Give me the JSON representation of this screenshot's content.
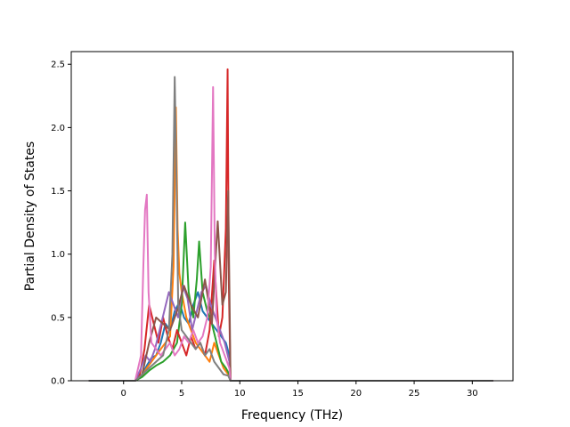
{
  "chart_data": {
    "type": "line",
    "title": "",
    "xlabel": "Frequency (THz)",
    "ylabel": "Partial Density of States",
    "xlim": [
      -4.5,
      33.5
    ],
    "ylim": [
      0,
      2.6
    ],
    "xticks": [
      0,
      5,
      10,
      15,
      20,
      25,
      30
    ],
    "yticks": [
      0.0,
      0.5,
      1.0,
      1.5,
      2.0,
      2.5
    ],
    "xtick_labels": [
      "0",
      "5",
      "10",
      "15",
      "20",
      "25",
      "30"
    ],
    "ytick_labels": [
      "0.0",
      "0.5",
      "1.0",
      "1.5",
      "2.0",
      "2.5"
    ],
    "grid": false,
    "legend": "none",
    "series": [
      {
        "color": "#1f77b4",
        "x": [
          -3,
          1,
          1.6,
          2.0,
          2.4,
          2.8,
          3.2,
          3.6,
          4.0,
          4.4,
          4.8,
          5.2,
          5.6,
          6.0,
          6.4,
          6.8,
          7.2,
          7.6,
          8.0,
          8.4,
          8.8,
          9.1,
          9.2,
          31.8
        ],
        "y": [
          0,
          0,
          0.05,
          0.12,
          0.18,
          0.2,
          0.3,
          0.45,
          0.4,
          0.55,
          0.62,
          0.5,
          0.45,
          0.6,
          0.7,
          0.55,
          0.5,
          0.45,
          0.4,
          0.35,
          0.3,
          0.2,
          0,
          0
        ]
      },
      {
        "color": "#ff7f0e",
        "x": [
          -3,
          1,
          1.6,
          2.0,
          2.4,
          2.8,
          3.2,
          3.6,
          4.0,
          4.3,
          4.5,
          4.65,
          4.8,
          5.0,
          5.4,
          5.8,
          6.2,
          6.6,
          7.0,
          7.4,
          7.8,
          8.2,
          8.6,
          9.0,
          9.2,
          31.8
        ],
        "y": [
          0,
          0,
          0.04,
          0.1,
          0.15,
          0.2,
          0.25,
          0.3,
          0.35,
          0.9,
          2.16,
          1.2,
          0.85,
          0.7,
          0.5,
          0.4,
          0.3,
          0.25,
          0.2,
          0.15,
          0.3,
          0.2,
          0.1,
          0.05,
          0,
          0
        ]
      },
      {
        "color": "#2ca02c",
        "x": [
          -3,
          1,
          1.6,
          2.2,
          2.8,
          3.4,
          4.0,
          4.6,
          5.0,
          5.3,
          5.6,
          6.0,
          6.3,
          6.5,
          6.8,
          7.2,
          7.6,
          8.0,
          8.4,
          8.8,
          9.1,
          9.2,
          31.8
        ],
        "y": [
          0,
          0,
          0.03,
          0.08,
          0.12,
          0.15,
          0.2,
          0.3,
          0.6,
          1.25,
          0.7,
          0.5,
          0.8,
          1.1,
          0.7,
          0.55,
          0.45,
          0.3,
          0.15,
          0.1,
          0.05,
          0,
          0
        ]
      },
      {
        "color": "#d62728",
        "x": [
          -3,
          1,
          1.4,
          1.8,
          2.2,
          2.6,
          3.0,
          3.4,
          3.8,
          4.2,
          4.6,
          5.0,
          5.4,
          5.8,
          6.2,
          6.6,
          7.0,
          7.4,
          7.8,
          8.2,
          8.5,
          8.8,
          8.95,
          9.05,
          9.2,
          31.8
        ],
        "y": [
          0,
          0,
          0.05,
          0.25,
          0.6,
          0.45,
          0.3,
          0.5,
          0.35,
          0.25,
          0.4,
          0.3,
          0.2,
          0.35,
          0.25,
          0.3,
          0.2,
          0.4,
          0.95,
          0.35,
          0.5,
          1.2,
          2.46,
          0.8,
          0,
          0
        ]
      },
      {
        "color": "#9467bd",
        "x": [
          -3,
          1,
          1.5,
          1.9,
          2.3,
          2.7,
          3.1,
          3.5,
          3.9,
          4.3,
          4.7,
          5.1,
          5.5,
          5.9,
          6.3,
          6.7,
          7.1,
          7.5,
          7.9,
          8.3,
          8.7,
          9.1,
          9.2,
          31.8
        ],
        "y": [
          0,
          0,
          0.1,
          0.2,
          0.15,
          0.25,
          0.4,
          0.55,
          0.7,
          0.6,
          0.5,
          0.75,
          0.65,
          0.4,
          0.55,
          0.7,
          0.75,
          0.6,
          0.5,
          0.4,
          0.3,
          0.15,
          0,
          0
        ]
      },
      {
        "color": "#8c564b",
        "x": [
          -3,
          1,
          1.6,
          2.2,
          2.8,
          3.4,
          4.0,
          4.6,
          5.2,
          5.8,
          6.4,
          7.0,
          7.6,
          8.1,
          8.5,
          8.8,
          9.0,
          9.15,
          9.2,
          31.8
        ],
        "y": [
          0,
          0,
          0.05,
          0.3,
          0.5,
          0.45,
          0.4,
          0.55,
          0.75,
          0.6,
          0.5,
          0.8,
          0.45,
          1.26,
          0.6,
          0.7,
          1.5,
          0.4,
          0,
          0
        ]
      },
      {
        "color": "#e377c2",
        "x": [
          -3,
          1,
          1.5,
          1.7,
          1.85,
          2.0,
          2.15,
          2.4,
          2.8,
          3.2,
          3.6,
          4.0,
          4.4,
          4.8,
          5.2,
          5.6,
          6.0,
          6.4,
          6.8,
          7.2,
          7.5,
          7.7,
          7.85,
          8.0,
          8.3,
          8.7,
          9.1,
          9.2,
          31.8
        ],
        "y": [
          0,
          0,
          0.2,
          0.9,
          1.35,
          1.47,
          0.7,
          0.3,
          0.25,
          0.2,
          0.25,
          0.3,
          0.2,
          0.25,
          0.35,
          0.3,
          0.4,
          0.3,
          0.35,
          0.5,
          0.9,
          2.32,
          1.0,
          0.5,
          0.3,
          0.2,
          0.1,
          0,
          0
        ]
      },
      {
        "color": "#7f7f7f",
        "x": [
          -3,
          1,
          1.6,
          2.2,
          2.8,
          3.4,
          3.9,
          4.2,
          4.4,
          4.55,
          4.7,
          5.0,
          5.4,
          5.8,
          6.2,
          6.6,
          7.0,
          7.4,
          7.8,
          8.2,
          8.6,
          9.0,
          9.2,
          31.8
        ],
        "y": [
          0,
          0,
          0.05,
          0.1,
          0.15,
          0.2,
          0.4,
          1.0,
          2.4,
          1.6,
          0.6,
          0.4,
          0.35,
          0.3,
          0.25,
          0.3,
          0.2,
          0.25,
          0.15,
          0.1,
          0.05,
          0.04,
          0,
          0
        ]
      }
    ]
  }
}
